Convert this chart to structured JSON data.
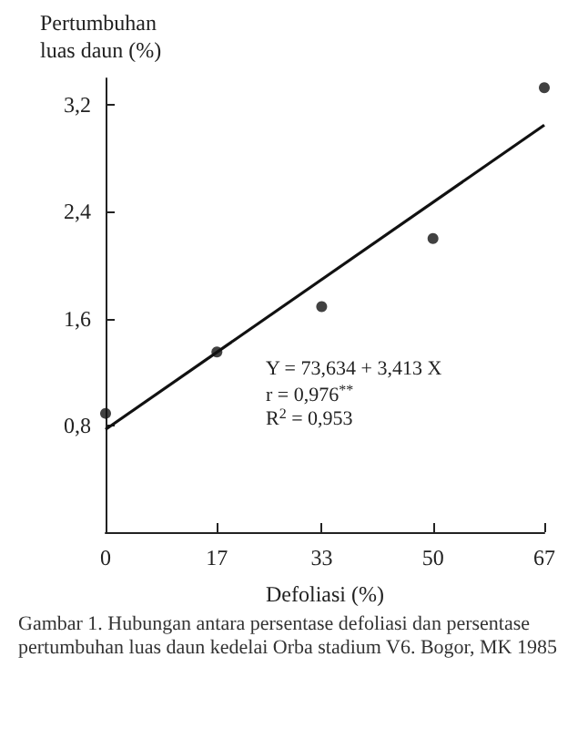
{
  "chart_data": {
    "type": "scatter",
    "xlabel": "Defoliasi (%)",
    "ylabel": "Pertumbuhan luas daun (%)",
    "x": [
      0,
      17,
      33,
      50,
      67
    ],
    "series": [
      {
        "color": "#111111",
        "values": [
          0.89,
          1.35,
          1.69,
          2.2,
          3.33
        ]
      },
      {
        "type": "line",
        "color": "#111111",
        "marker": "none",
        "x": [
          0,
          67
        ],
        "values": [
          0.77,
          3.05
        ]
      }
    ],
    "xlim": [
      0,
      67
    ],
    "xticks": [
      0,
      17,
      33,
      50,
      67
    ],
    "ylim": [
      0,
      3.4
    ],
    "yticks": [
      {
        "value": 0.8,
        "label": "0,8"
      },
      {
        "value": 1.6,
        "label": "1,6"
      },
      {
        "value": 2.4,
        "label": "2,4"
      },
      {
        "value": 3.2,
        "label": "3,2"
      }
    ],
    "annotations": [
      "Y = 73,634 + 3,413 X",
      "r = 0,976$^{**}$",
      "R$^{2}$ = 0,953",
      "Gambar 1. Hubungan antara persentase defoliasi dan persentase pertumbuhan luas daun kedelai Orba stadium V6. Bogor, MK 1985"
    ],
    "grid": false,
    "marker": "circle",
    "line_style": "solid"
  }
}
